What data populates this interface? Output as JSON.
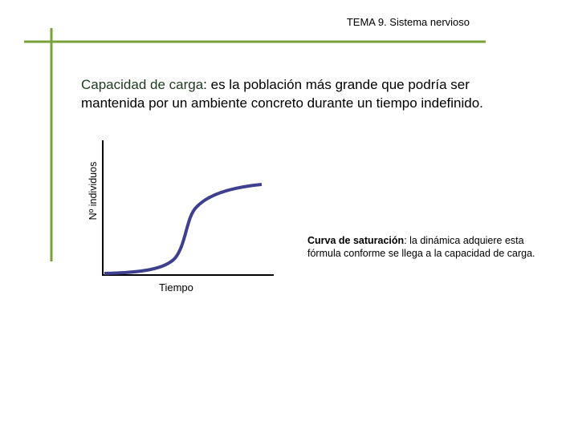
{
  "header": {
    "title": "TEMA 9. Sistema nervioso"
  },
  "definition": {
    "term": "Capacidad de carga",
    "text": ": es la población más grande que podría ser mantenida por un ambiente concreto durante un tiempo indefinido."
  },
  "figure": {
    "y_label": "Nº individuos",
    "x_label": "Tiempo"
  },
  "caption": {
    "term": "Curva de saturación",
    "text": ": la dinámica adquiere esta fórmula conforme se llega a la capacidad de carga."
  }
}
